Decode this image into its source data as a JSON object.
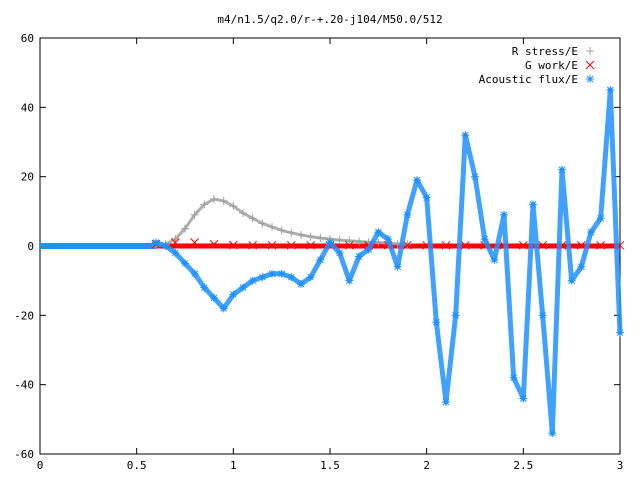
{
  "chart_data": {
    "type": "scatter",
    "title": "m4/n1.5/q2.0/r-+.20-j104/M50.0/512",
    "xlabel": "",
    "ylabel": "",
    "xlim": [
      0,
      3
    ],
    "ylim": [
      -60,
      60
    ],
    "xticks": [
      0,
      0.5,
      1,
      1.5,
      2,
      2.5,
      3
    ],
    "xtick_labels": [
      "0",
      "0.5",
      "1",
      "1.5",
      "2",
      "2.5",
      "3"
    ],
    "yticks": [
      -60,
      -40,
      -20,
      0,
      20,
      40,
      60
    ],
    "ytick_labels": [
      "-60",
      "-40",
      "-20",
      "0",
      "20",
      "40",
      "60"
    ],
    "grid": false,
    "legend_position": "top-right",
    "series": [
      {
        "name": "R stress/E",
        "marker": "plus",
        "color": "#a0a0a0",
        "x": [
          0.6,
          0.65,
          0.7,
          0.75,
          0.8,
          0.85,
          0.9,
          0.95,
          1.0,
          1.05,
          1.1,
          1.15,
          1.2,
          1.25,
          1.3,
          1.35,
          1.4,
          1.45,
          1.5,
          1.55,
          1.6,
          1.65,
          1.7,
          1.75,
          1.8,
          1.85,
          1.9
        ],
        "y": [
          0,
          0.5,
          2,
          5,
          9,
          12,
          13.5,
          13,
          11.5,
          9.5,
          8,
          6.5,
          5.5,
          4.5,
          3.8,
          3.2,
          2.7,
          2.3,
          2.0,
          1.7,
          1.5,
          1.3,
          1.1,
          1.0,
          0.8,
          0.6,
          0.5
        ]
      },
      {
        "name": "G work/E",
        "marker": "cross",
        "color": "#ff0000",
        "x": [
          0.6,
          0.7,
          0.8,
          0.9,
          1.0,
          1.1,
          1.2,
          1.3,
          1.4,
          1.5,
          1.6,
          1.7,
          1.8,
          1.9,
          2.0,
          2.1,
          2.2,
          2.3,
          2.4,
          2.5,
          2.6,
          2.7,
          2.8,
          2.9,
          3.0
        ],
        "y": [
          0.5,
          1,
          1,
          0.5,
          0.3,
          0.2,
          0.2,
          0.2,
          0.2,
          0.2,
          0.2,
          0.2,
          0.2,
          0.2,
          0.2,
          0.2,
          0.2,
          0.2,
          0.2,
          0.2,
          0.2,
          0.2,
          0.2,
          0.2,
          0.2
        ]
      },
      {
        "name": "Acoustic flux/E",
        "marker": "star",
        "color": "#1e90ff",
        "x": [
          0.6,
          0.65,
          0.7,
          0.75,
          0.8,
          0.85,
          0.9,
          0.95,
          1.0,
          1.05,
          1.1,
          1.15,
          1.2,
          1.25,
          1.3,
          1.35,
          1.4,
          1.45,
          1.5,
          1.55,
          1.6,
          1.65,
          1.7,
          1.75,
          1.8,
          1.85,
          1.9,
          1.95,
          2.0,
          2.05,
          2.1,
          2.15,
          2.2,
          2.25,
          2.3,
          2.35,
          2.4,
          2.45,
          2.5,
          2.55,
          2.6,
          2.65,
          2.7,
          2.75,
          2.8,
          2.85,
          2.9,
          2.95,
          3.0
        ],
        "y": [
          1,
          0,
          -2,
          -5,
          -8,
          -12,
          -15,
          -18,
          -14,
          -12,
          -10,
          -9,
          -8,
          -8,
          -9,
          -11,
          -9,
          -4,
          1,
          -2,
          -10,
          -3,
          -1,
          4,
          2,
          -6,
          9,
          19,
          14,
          -22,
          -45,
          -20,
          32,
          20,
          2,
          -4,
          9,
          -38,
          -44,
          12,
          -20,
          -54,
          22,
          -10,
          -6,
          4,
          8,
          45,
          -25
        ]
      }
    ]
  }
}
